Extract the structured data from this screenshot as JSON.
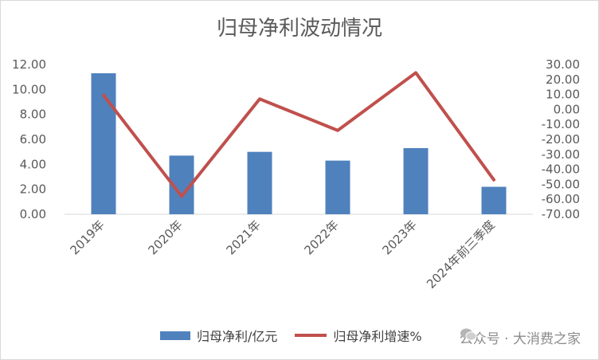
{
  "chart_data": {
    "type": "bar",
    "title": "归母净利波动情况",
    "categories": [
      "2019年",
      "2020年",
      "2021年",
      "2022年",
      "2023年",
      "2024年前三季度"
    ],
    "series": [
      {
        "name": "归母净利/亿元",
        "type": "bar",
        "axis": "left",
        "color": "#4f81bd",
        "values": [
          11.3,
          4.7,
          5.0,
          4.3,
          5.3,
          2.2
        ]
      },
      {
        "name": "归母净利增速%",
        "type": "line",
        "axis": "right",
        "color": "#c0504d",
        "values": [
          9.5,
          -58.0,
          7.0,
          -14.0,
          24.5,
          -47.0
        ]
      }
    ],
    "y_left": {
      "min": 0,
      "max": 12,
      "step": 2,
      "ticks": [
        "0.00",
        "2.00",
        "4.00",
        "6.00",
        "8.00",
        "10.00",
        "12.00"
      ]
    },
    "y_right": {
      "min": -70,
      "max": 30,
      "step": 10,
      "ticks": [
        "-70.00",
        "-60.00",
        "-50.00",
        "-40.00",
        "-30.00",
        "-20.00",
        "-10.00",
        "0.00",
        "10.00",
        "20.00",
        "30.00"
      ]
    },
    "grid": false,
    "legend_position": "bottom"
  },
  "watermark": {
    "text": "公众号 · 大消费之家"
  }
}
